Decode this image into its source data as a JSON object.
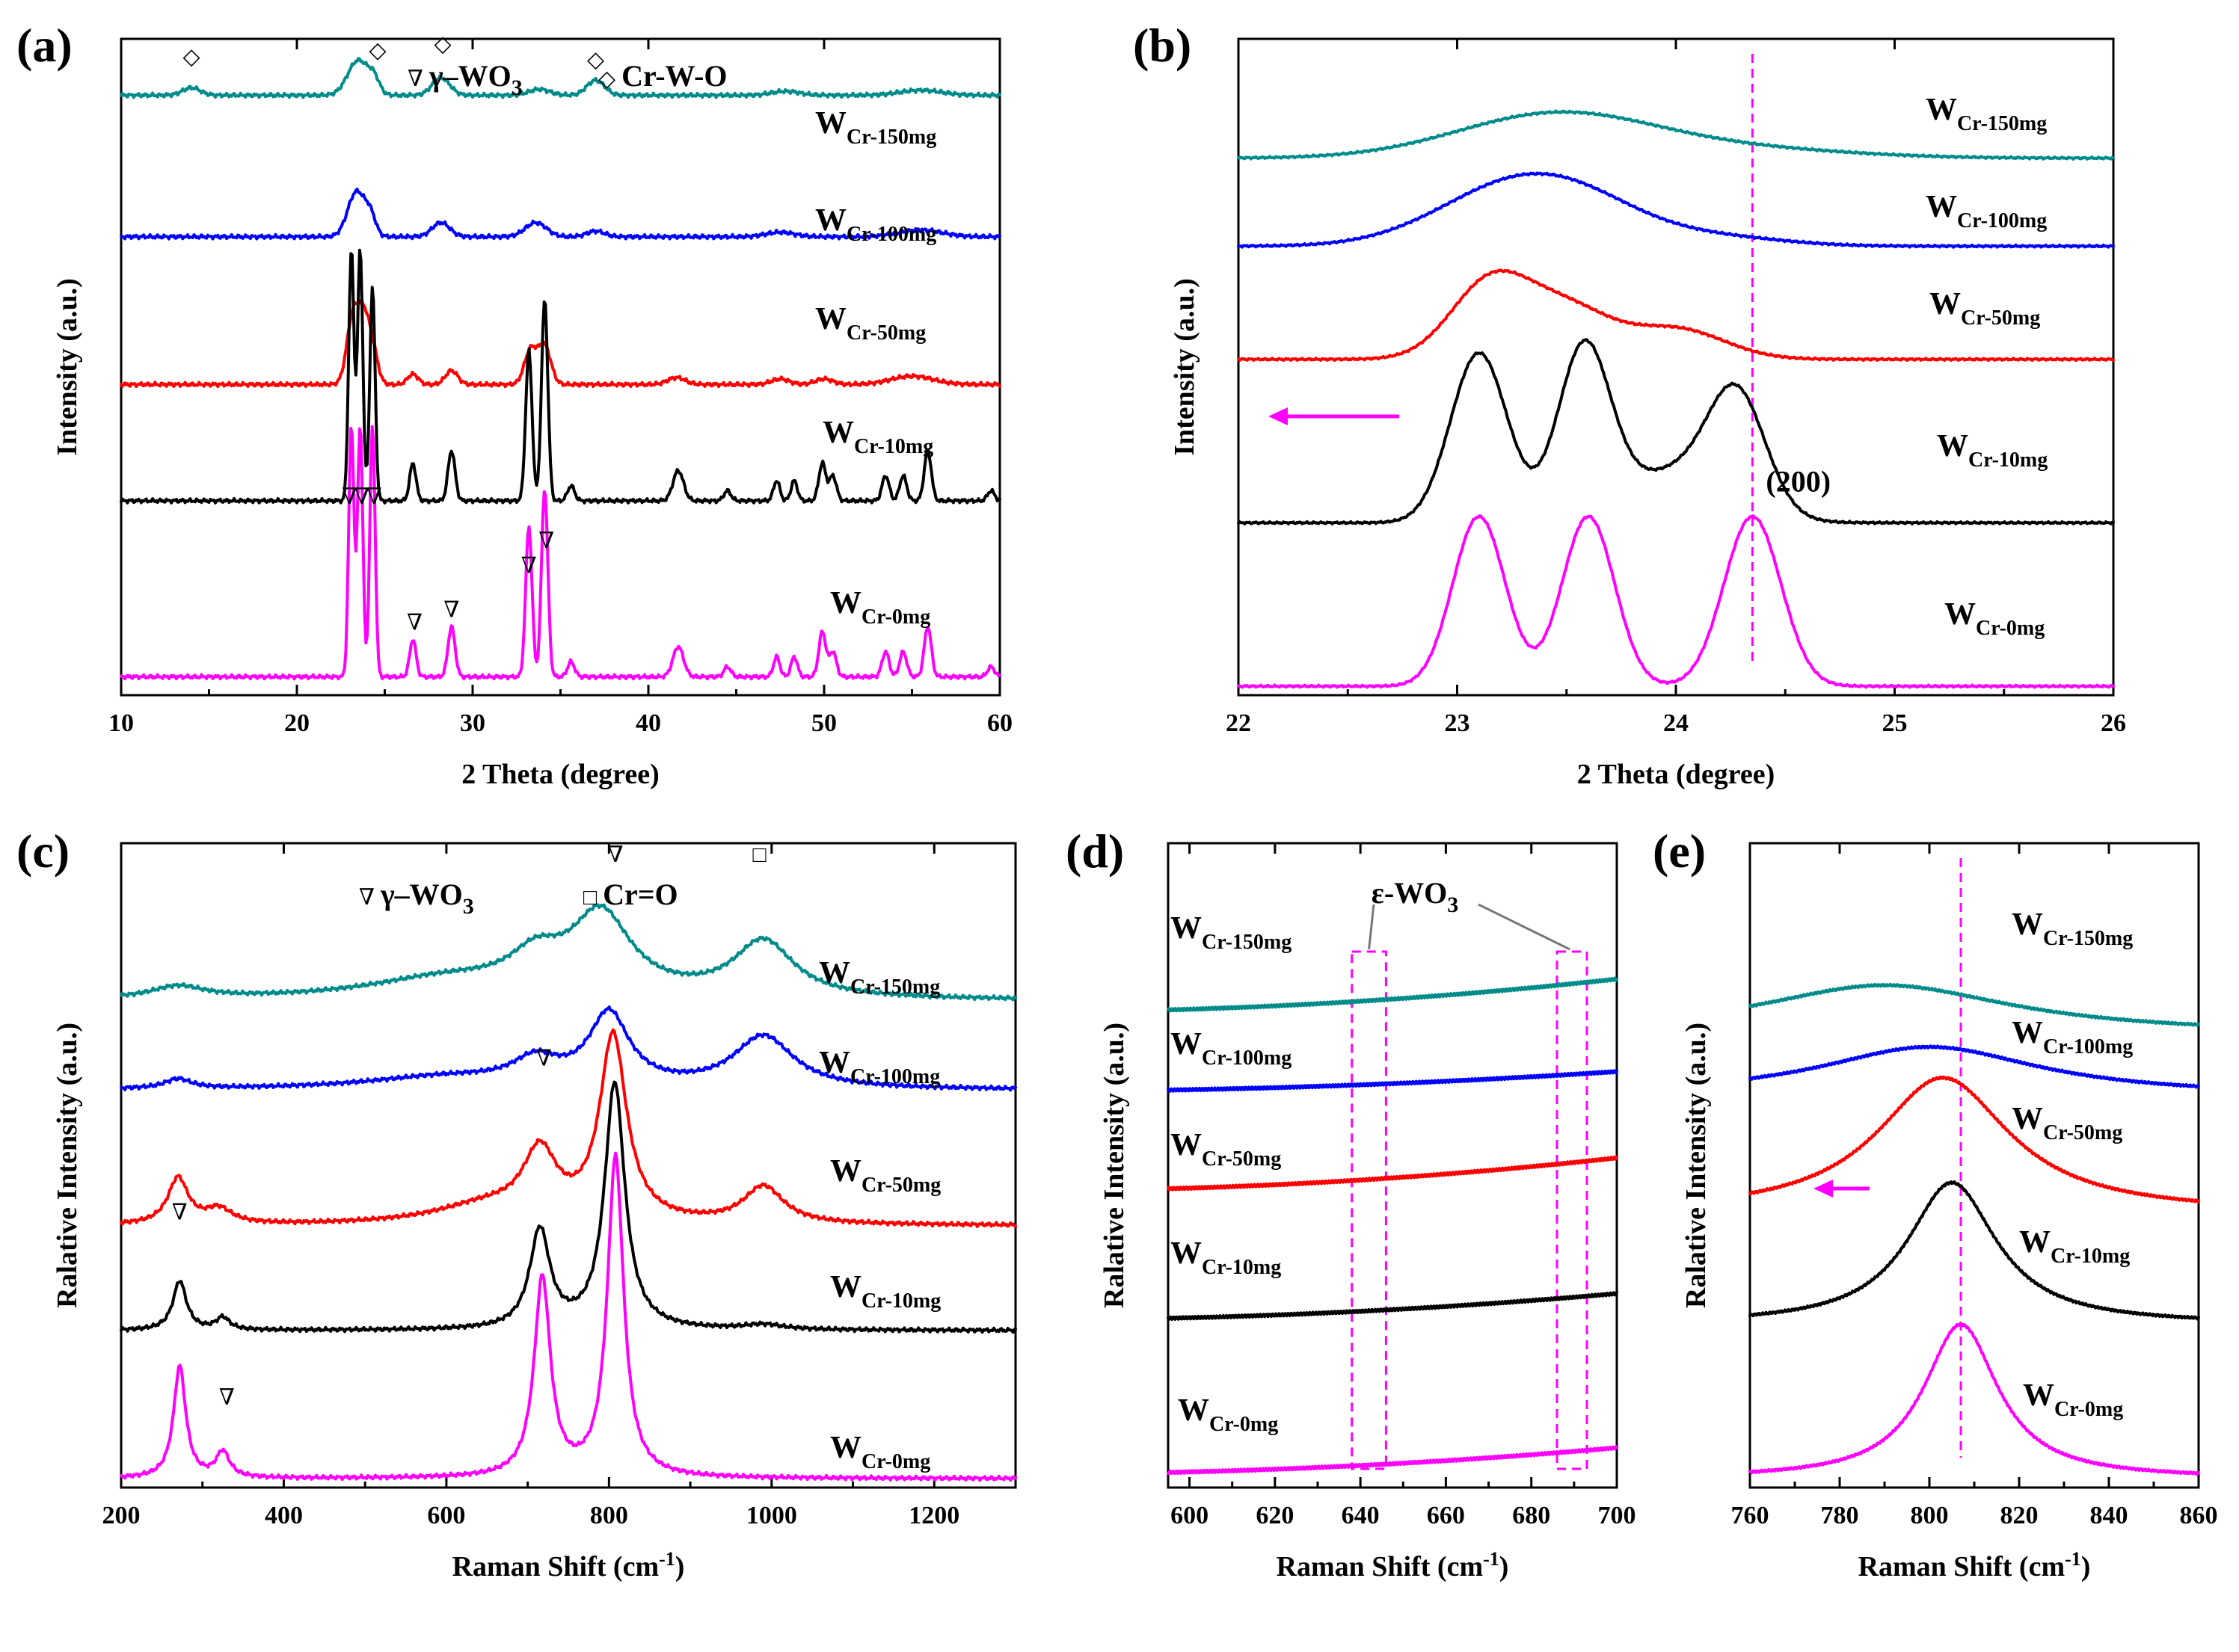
{
  "chart_data": [
    {
      "panel": "(a)",
      "type": "line",
      "xlabel": "2 Theta (degree)",
      "ylabel": "Intensity (a.u.)",
      "xlim": [
        10,
        60
      ],
      "xticks": [
        10,
        20,
        30,
        40,
        50,
        60
      ],
      "legend": [
        {
          "symbol": "∇",
          "text": "γ–WO",
          "sub": "3"
        },
        {
          "symbol": "◇",
          "text": "Cr-W-O",
          "sub": ""
        }
      ],
      "series": [
        {
          "name": "W",
          "sub": "Cr-150mg",
          "color": "#008B8B",
          "baseline": 0.94,
          "scale": 0.08,
          "peaks": [
            [
              14,
              0.15,
              0.5
            ],
            [
              23.5,
              0.7,
              0.6
            ],
            [
              24.4,
              0.25,
              0.3
            ],
            [
              28.2,
              0.35,
              0.5
            ],
            [
              33.8,
              0.12,
              0.6
            ],
            [
              37,
              0.3,
              0.5
            ],
            [
              47.8,
              0.08,
              0.8
            ],
            [
              55.5,
              0.1,
              1.2
            ]
          ]
        },
        {
          "name": "W",
          "sub": "Cr-100mg",
          "color": "#0000FF",
          "baseline": 0.715,
          "scale": 0.09,
          "peaks": [
            [
              23.4,
              0.8,
              0.5
            ],
            [
              24.2,
              0.3,
              0.3
            ],
            [
              28.2,
              0.25,
              0.5
            ],
            [
              33.6,
              0.25,
              0.6
            ],
            [
              37,
              0.1,
              0.5
            ],
            [
              47.5,
              0.08,
              0.8
            ],
            [
              55.5,
              0.12,
              1.2
            ]
          ]
        },
        {
          "name": "W",
          "sub": "Cr-50mg",
          "color": "#FF0000",
          "baseline": 0.48,
          "scale": 0.11,
          "peaks": [
            [
              23.2,
              1.0,
              0.35
            ],
            [
              23.8,
              0.8,
              0.3
            ],
            [
              24.3,
              0.5,
              0.3
            ],
            [
              26.6,
              0.15,
              0.3
            ],
            [
              28.8,
              0.2,
              0.35
            ],
            [
              33.3,
              0.5,
              0.35
            ],
            [
              34.1,
              0.55,
              0.35
            ],
            [
              41.6,
              0.1,
              0.5
            ],
            [
              47.5,
              0.08,
              0.5
            ],
            [
              50,
              0.08,
              0.5
            ],
            [
              55,
              0.12,
              1.2
            ]
          ]
        },
        {
          "name": "W",
          "sub": "Cr-10mg",
          "color": "#000000",
          "baseline": 0.295,
          "scale": 0.4,
          "peaks": [
            [
              23.1,
              1.0,
              0.15
            ],
            [
              23.6,
              1.0,
              0.15
            ],
            [
              24.3,
              0.85,
              0.15
            ],
            [
              26.6,
              0.15,
              0.18
            ],
            [
              28.8,
              0.2,
              0.2
            ],
            [
              33.2,
              0.6,
              0.18
            ],
            [
              34.1,
              0.8,
              0.18
            ],
            [
              35.6,
              0.06,
              0.2
            ],
            [
              41.7,
              0.12,
              0.3
            ],
            [
              44.5,
              0.04,
              0.2
            ],
            [
              47.3,
              0.08,
              0.18
            ],
            [
              48.3,
              0.08,
              0.18
            ],
            [
              49.9,
              0.15,
              0.2
            ],
            [
              50.5,
              0.1,
              0.2
            ],
            [
              53.5,
              0.1,
              0.2
            ],
            [
              54.5,
              0.1,
              0.2
            ],
            [
              55.9,
              0.2,
              0.2
            ],
            [
              59.5,
              0.04,
              0.2
            ]
          ]
        },
        {
          "name": "W",
          "sub": "Cr-0mg",
          "color": "#FF00FF",
          "baseline": 0.015,
          "scale": 0.4,
          "peaks": [
            [
              23.1,
              1.0,
              0.15
            ],
            [
              23.6,
              1.0,
              0.15
            ],
            [
              24.3,
              1.0,
              0.15
            ],
            [
              26.6,
              0.15,
              0.18
            ],
            [
              28.8,
              0.2,
              0.2
            ],
            [
              33.2,
              0.6,
              0.18
            ],
            [
              34.1,
              0.75,
              0.18
            ],
            [
              35.6,
              0.06,
              0.2
            ],
            [
              41.7,
              0.12,
              0.3
            ],
            [
              44.5,
              0.04,
              0.2
            ],
            [
              47.3,
              0.08,
              0.18
            ],
            [
              48.3,
              0.08,
              0.18
            ],
            [
              49.9,
              0.18,
              0.2
            ],
            [
              50.5,
              0.1,
              0.2
            ],
            [
              53.5,
              0.1,
              0.2
            ],
            [
              54.5,
              0.1,
              0.2
            ],
            [
              55.9,
              0.2,
              0.2
            ],
            [
              59.5,
              0.04,
              0.2
            ]
          ]
        }
      ],
      "markers": [
        {
          "symbol": "◇",
          "x": 14,
          "y": 0.99
        },
        {
          "symbol": "◇",
          "x": 24.6,
          "y": 1.0
        },
        {
          "symbol": "◇",
          "x": 28.3,
          "y": 1.01
        },
        {
          "symbol": "◇",
          "x": 37,
          "y": 0.985
        },
        {
          "symbol": "∇",
          "x": 23.0,
          "y": 0.29
        },
        {
          "symbol": "∇",
          "x": 23.7,
          "y": 0.29
        },
        {
          "symbol": "∇",
          "x": 24.4,
          "y": 0.29
        },
        {
          "symbol": "∇",
          "x": 26.7,
          "y": 0.09
        },
        {
          "symbol": "∇",
          "x": 28.8,
          "y": 0.11
        },
        {
          "symbol": "∇",
          "x": 33.2,
          "y": 0.18
        },
        {
          "symbol": "∇",
          "x": 34.2,
          "y": 0.22
        }
      ]
    },
    {
      "panel": "(b)",
      "type": "line",
      "xlabel": "2 Theta (degree)",
      "ylabel": "Intensity (a.u.)",
      "xlim": [
        22,
        26
      ],
      "xticks": [
        22,
        23,
        24,
        25,
        26
      ],
      "reference_line_x": 24.35,
      "annotation": "(200)",
      "shift_arrow": "left",
      "series": [
        {
          "name": "W",
          "sub": "Cr-150mg",
          "color": "#008B8B",
          "baseline": 0.84,
          "scale": 0.07,
          "peaks": [
            [
              23.45,
              1.0,
              0.45
            ],
            [
              24.3,
              0.2,
              0.5
            ]
          ]
        },
        {
          "name": "W",
          "sub": "Cr-100mg",
          "color": "#0000FF",
          "baseline": 0.7,
          "scale": 0.09,
          "peaks": [
            [
              23.25,
              1.0,
              0.35
            ],
            [
              23.6,
              0.45,
              0.3
            ],
            [
              24.2,
              0.15,
              0.3
            ]
          ]
        },
        {
          "name": "W",
          "sub": "Cr-50mg",
          "color": "#FF0000",
          "baseline": 0.52,
          "scale": 0.12,
          "peaks": [
            [
              23.15,
              1.0,
              0.18
            ],
            [
              23.5,
              0.65,
              0.2
            ],
            [
              24.0,
              0.4,
              0.22
            ]
          ]
        },
        {
          "name": "W",
          "sub": "Cr-10mg",
          "color": "#000000",
          "baseline": 0.26,
          "scale": 0.27,
          "peaks": [
            [
              23.1,
              1.0,
              0.13
            ],
            [
              23.58,
              1.0,
              0.12
            ],
            [
              24.0,
              0.3,
              0.25
            ],
            [
              24.28,
              0.65,
              0.13
            ]
          ]
        },
        {
          "name": "W",
          "sub": "Cr-0mg",
          "color": "#FF00FF",
          "baseline": 0.0,
          "scale": 0.27,
          "peaks": [
            [
              23.1,
              1.0,
              0.12
            ],
            [
              23.6,
              1.0,
              0.12
            ],
            [
              24.35,
              1.0,
              0.13
            ]
          ]
        }
      ]
    },
    {
      "panel": "(c)",
      "type": "line",
      "xlabel": "Raman Shift (cm",
      "xlabel_sup": "-1",
      "xlabel_end": ")",
      "ylabel": "Ralative Intensity (a.u.)",
      "xlim": [
        200,
        1300
      ],
      "xticks": [
        200,
        400,
        600,
        800,
        1000,
        1200
      ],
      "legend": [
        {
          "symbol": "∇",
          "text": "γ–WO",
          "sub": "3"
        },
        {
          "symbol": "□",
          "text": "Cr=O",
          "sub": ""
        }
      ],
      "series": [
        {
          "name": "W",
          "sub": "Cr-150mg",
          "color": "#008B8B",
          "baseline": 0.775,
          "scale": 0.13,
          "peaks": [
            [
              270,
              0.15,
              40
            ],
            [
              710,
              0.4,
              40
            ],
            [
              790,
              1.0,
              45
            ],
            [
              990,
              0.7,
              45
            ],
            [
              600,
              0.25,
              120
            ]
          ]
        },
        {
          "name": "W",
          "sub": "Cr-100mg",
          "color": "#0000FF",
          "baseline": 0.63,
          "scale": 0.13,
          "peaks": [
            [
              270,
              0.12,
              20
            ],
            [
              710,
              0.3,
              35
            ],
            [
              800,
              0.9,
              30
            ],
            [
              990,
              0.65,
              45
            ],
            [
              600,
              0.15,
              120
            ]
          ]
        },
        {
          "name": "W",
          "sub": "Cr-50mg",
          "color": "#FF0000",
          "baseline": 0.41,
          "scale": 0.3,
          "peaks": [
            [
              270,
              0.25,
              15
            ],
            [
              320,
              0.08,
              20
            ],
            [
              715,
              0.35,
              25
            ],
            [
              805,
              1.0,
              20
            ],
            [
              990,
              0.2,
              30
            ],
            [
              650,
              0.1,
              80
            ]
          ]
        },
        {
          "name": "W",
          "sub": "Cr-10mg",
          "color": "#000000",
          "baseline": 0.24,
          "scale": 0.4,
          "peaks": [
            [
              272,
              0.2,
              10
            ],
            [
              325,
              0.05,
              10
            ],
            [
              715,
              0.4,
              15
            ],
            [
              807,
              1.0,
              15
            ],
            [
              990,
              0.02,
              30
            ]
          ]
        },
        {
          "name": "W",
          "sub": "Cr-0mg",
          "color": "#FF00FF",
          "baseline": 0.0,
          "scale": 0.52,
          "peaks": [
            [
              272,
              0.35,
              9
            ],
            [
              325,
              0.08,
              10
            ],
            [
              718,
              0.62,
              12
            ],
            [
              808,
              1.0,
              12
            ]
          ]
        }
      ],
      "markers": [
        {
          "symbol": "∇",
          "x": 272,
          "y": 0.42
        },
        {
          "symbol": "∇",
          "x": 330,
          "y": 0.12
        },
        {
          "symbol": "∇",
          "x": 720,
          "y": 0.67
        },
        {
          "symbol": "∇",
          "x": 808,
          "y": 1.0
        },
        {
          "symbol": "□",
          "x": 985,
          "y": 1.0
        }
      ]
    },
    {
      "panel": "(d)",
      "type": "line",
      "xlabel": "Raman Shift (cm",
      "xlabel_sup": "-1",
      "xlabel_end": ")",
      "ylabel": "Ralative Intensity (a.u.)",
      "xlim": [
        595,
        700
      ],
      "xticks": [
        600,
        620,
        640,
        660,
        680,
        700
      ],
      "annotation": "ε-WO",
      "annotation_sub": "3",
      "boxes": [
        [
          638,
          646
        ],
        [
          686,
          693
        ]
      ],
      "series": [
        {
          "name": "W",
          "sub": "Cr-150mg",
          "color": "#008B8B",
          "start": 0.76,
          "end": 0.81
        },
        {
          "name": "W",
          "sub": "Cr-100mg",
          "color": "#0000FF",
          "start": 0.63,
          "end": 0.66
        },
        {
          "name": "W",
          "sub": "Cr-50mg",
          "color": "#FF0000",
          "start": 0.47,
          "end": 0.52
        },
        {
          "name": "W",
          "sub": "Cr-10mg",
          "color": "#000000",
          "start": 0.26,
          "end": 0.3
        },
        {
          "name": "W",
          "sub": "Cr-0mg",
          "color": "#FF00FF",
          "start": 0.01,
          "end": 0.05
        }
      ]
    },
    {
      "panel": "(e)",
      "type": "line",
      "xlabel": "Raman Shift (cm",
      "xlabel_sup": "-1",
      "xlabel_end": ")",
      "ylabel": "Ralative Intensity (a.u.)",
      "xlim": [
        760,
        860
      ],
      "xticks": [
        760,
        780,
        800,
        820,
        840,
        860
      ],
      "reference_line_x": 807,
      "shift_arrow": "left",
      "series": [
        {
          "name": "W",
          "sub": "Cr-150mg",
          "color": "#008B8B",
          "baseline": 0.72,
          "scale": 0.08,
          "peaks": [
            [
              790,
              1.0,
              35
            ]
          ]
        },
        {
          "name": "W",
          "sub": "Cr-100mg",
          "color": "#0000FF",
          "baseline": 0.62,
          "scale": 0.08,
          "peaks": [
            [
              800,
              1.0,
              30
            ]
          ]
        },
        {
          "name": "W",
          "sub": "Cr-50mg",
          "color": "#FF0000",
          "baseline": 0.43,
          "scale": 0.22,
          "peaks": [
            [
              803,
              1.0,
              18
            ]
          ]
        },
        {
          "name": "W",
          "sub": "Cr-10mg",
          "color": "#000000",
          "baseline": 0.25,
          "scale": 0.23,
          "peaks": [
            [
              805,
              1.0,
              12
            ]
          ]
        },
        {
          "name": "W",
          "sub": "Cr-0mg",
          "color": "#FF00FF",
          "baseline": 0.0,
          "scale": 0.25,
          "peaks": [
            [
              807,
              1.0,
              10
            ]
          ]
        }
      ]
    }
  ]
}
